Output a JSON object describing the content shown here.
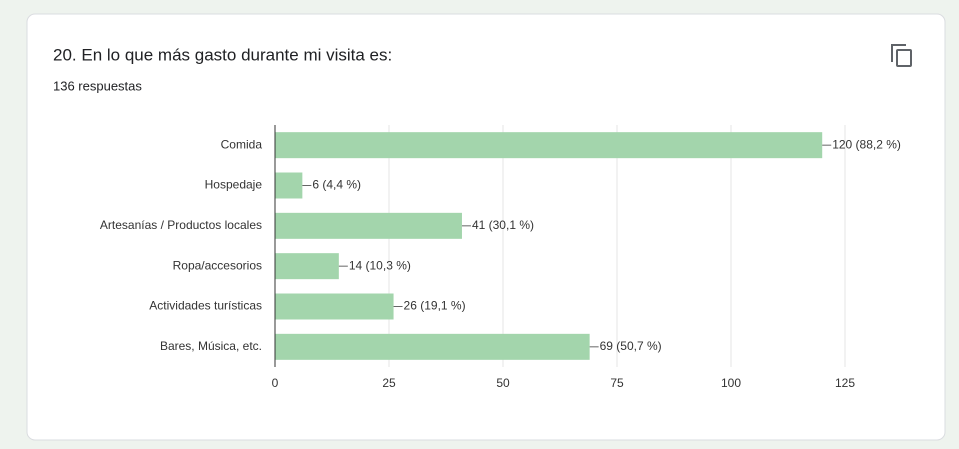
{
  "chart_data": {
    "type": "bar",
    "orientation": "horizontal",
    "title": "20. En lo que más gasto durante mi visita es:",
    "subtitle": "136 respuestas",
    "categories": [
      "Comida",
      "Hospedaje",
      "Artesanías / Productos locales",
      "Ropa/accesorios",
      "Actividades turísticas",
      "Bares, Música, etc."
    ],
    "values": [
      120,
      6,
      41,
      14,
      26,
      69
    ],
    "value_labels": [
      "120 (88,2 %)",
      "6 (4,4 %)",
      "41 (30,1 %)",
      "14 (10,3 %)",
      "26 (19,1 %)",
      "69 (50,7 %)"
    ],
    "color": "#a3d5ac",
    "xlim": [
      0,
      125
    ],
    "xticks": [
      0,
      25,
      50,
      75,
      100,
      125
    ],
    "grid": true
  }
}
